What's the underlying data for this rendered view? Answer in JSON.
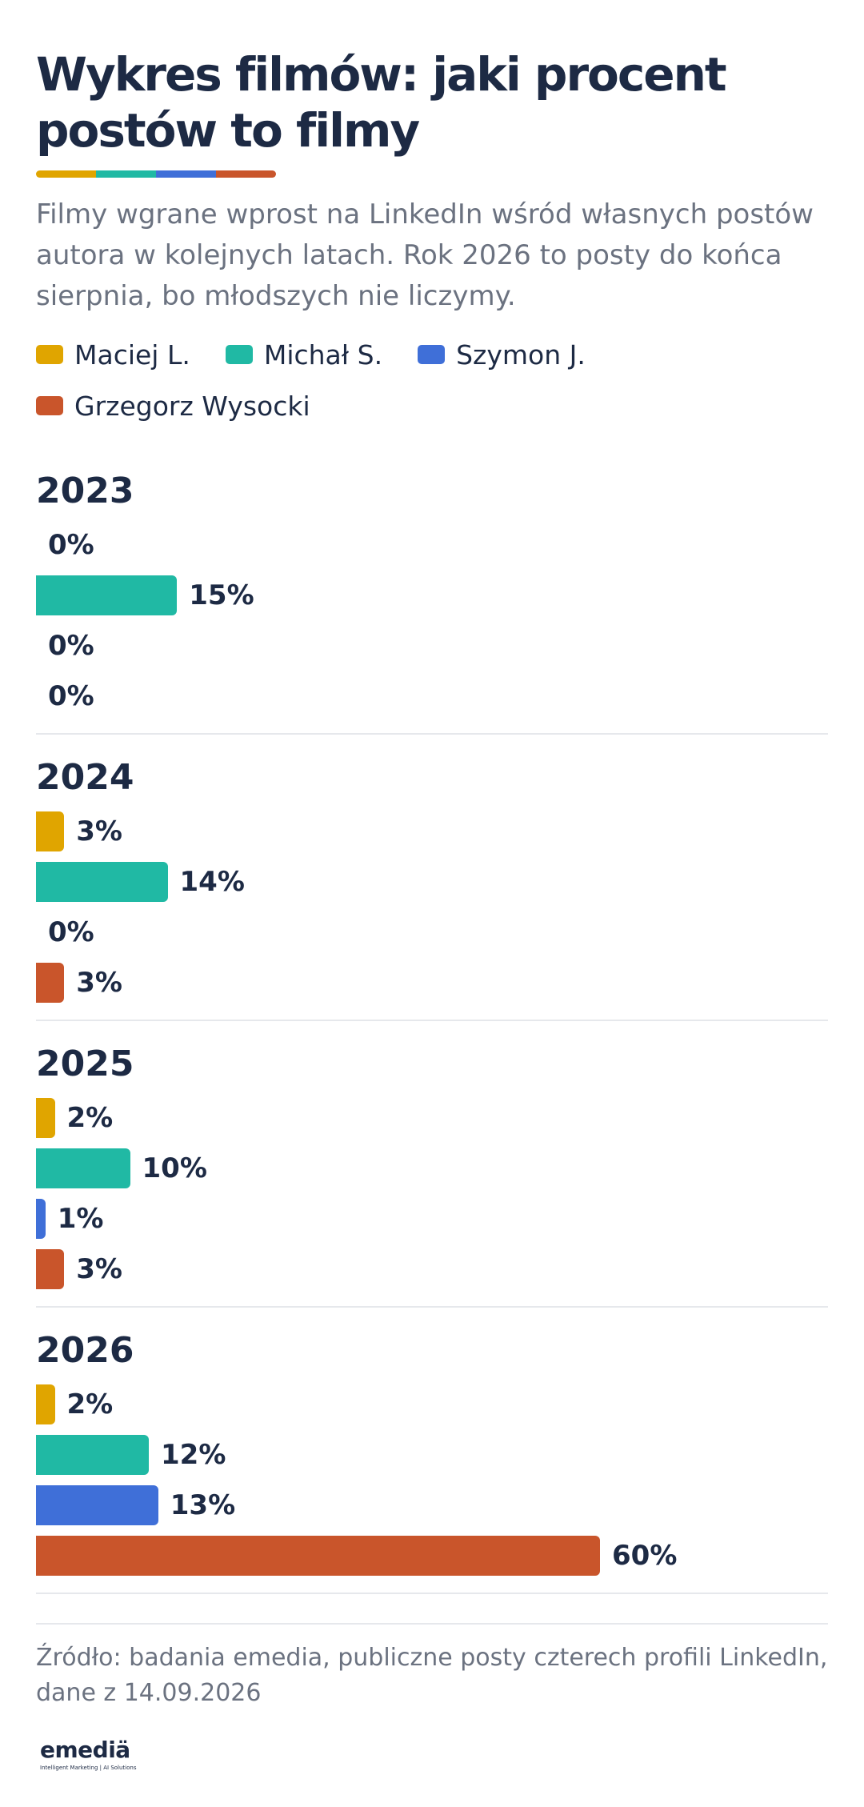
{
  "title": "Wykres filmów: jaki procent postów to filmy",
  "subtitle": "Filmy wgrane wprost na LinkedIn wśród własnych postów autora w kolejnych latach. Rok 2026 to posty do końca sierpnia, bo młodszych nie liczymy.",
  "accent_colors": [
    "#e0a500",
    "#20b9a4",
    "#3f6fd8",
    "#c9552b"
  ],
  "legend": [
    {
      "label": "Maciej L.",
      "color": "#e0a500"
    },
    {
      "label": "Michał S.",
      "color": "#20b9a4"
    },
    {
      "label": "Szymon J.",
      "color": "#3f6fd8"
    },
    {
      "label": "Grzegorz Wysocki",
      "color": "#c9552b"
    }
  ],
  "chart_data": {
    "type": "bar",
    "orientation": "horizontal",
    "unit": "%",
    "xlim": [
      0,
      60
    ],
    "grid": false,
    "legend_position": "top",
    "categories": [
      "2023",
      "2024",
      "2025",
      "2026"
    ],
    "series": [
      {
        "name": "Maciej L.",
        "color": "#e0a500",
        "values": [
          0,
          3,
          2,
          2
        ]
      },
      {
        "name": "Michał S.",
        "color": "#20b9a4",
        "values": [
          15,
          14,
          10,
          12
        ]
      },
      {
        "name": "Szymon J.",
        "color": "#3f6fd8",
        "values": [
          0,
          0,
          1,
          13
        ]
      },
      {
        "name": "Grzegorz Wysocki",
        "color": "#c9552b",
        "values": [
          0,
          3,
          3,
          60
        ]
      }
    ]
  },
  "source": "Źródło: badania emedia, publiczne posty czterech profili LinkedIn, dane z 14.09.2026",
  "logo": {
    "word": "emediä",
    "tagline": "Intelligent Marketing | AI Solutions"
  }
}
